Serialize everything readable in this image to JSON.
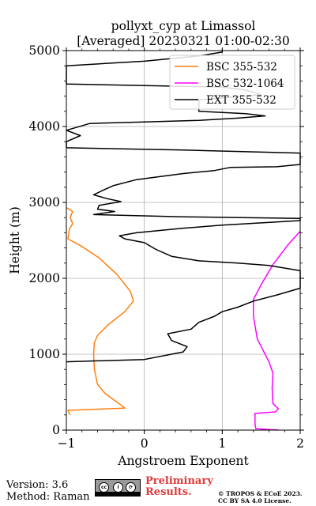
{
  "chart_data": {
    "type": "line",
    "title": "pollyxt_cyp at Limassol",
    "subtitle": "[Averaged] 20230321 01:00-02:30",
    "xlabel": "Angstroem Exponent",
    "ylabel": "Height (m)",
    "xlim": [
      -1,
      2
    ],
    "ylim": [
      0,
      5000
    ],
    "xticks": [
      "−1",
      "0",
      "1",
      "2"
    ],
    "yticks": [
      "0",
      "1000",
      "2000",
      "3000",
      "4000",
      "5000"
    ],
    "grid": true,
    "legend_position": "top-right",
    "series": [
      {
        "name": "BSC 355-532",
        "color": "#ff7f0e",
        "points": [
          [
            -0.95,
            200
          ],
          [
            -0.98,
            260
          ],
          [
            -0.25,
            290
          ],
          [
            -0.3,
            330
          ],
          [
            -0.5,
            480
          ],
          [
            -0.6,
            600
          ],
          [
            -0.64,
            800
          ],
          [
            -0.65,
            1000
          ],
          [
            -0.64,
            1150
          ],
          [
            -0.6,
            1250
          ],
          [
            -0.45,
            1400
          ],
          [
            -0.25,
            1560
          ],
          [
            -0.14,
            1700
          ],
          [
            -0.18,
            1830
          ],
          [
            -0.35,
            2050
          ],
          [
            -0.58,
            2270
          ],
          [
            -0.8,
            2420
          ],
          [
            -0.98,
            2520
          ],
          [
            -0.96,
            2650
          ],
          [
            -0.92,
            2720
          ],
          [
            -0.95,
            2800
          ],
          [
            -0.92,
            2880
          ],
          [
            -1.0,
            2930
          ]
        ]
      },
      {
        "name": "BSC 532-1064",
        "color": "#ff00ff",
        "points": [
          [
            1.72,
            0
          ],
          [
            1.43,
            20
          ],
          [
            1.42,
            80
          ],
          [
            1.42,
            220
          ],
          [
            1.68,
            240
          ],
          [
            1.72,
            280
          ],
          [
            1.65,
            350
          ],
          [
            1.64,
            550
          ],
          [
            1.65,
            750
          ],
          [
            1.6,
            900
          ],
          [
            1.45,
            1200
          ],
          [
            1.4,
            1500
          ],
          [
            1.4,
            1720
          ],
          [
            1.5,
            1920
          ],
          [
            1.65,
            2180
          ],
          [
            1.85,
            2450
          ],
          [
            2.0,
            2620
          ]
        ]
      },
      {
        "name": "EXT 355-532",
        "color": "#000000",
        "points": [
          [
            -1.0,
            900
          ],
          [
            0.0,
            930
          ],
          [
            0.5,
            1030
          ],
          [
            0.55,
            1100
          ],
          [
            0.35,
            1180
          ],
          [
            0.3,
            1270
          ],
          [
            0.6,
            1330
          ],
          [
            0.7,
            1420
          ],
          [
            0.9,
            1500
          ],
          [
            1.0,
            1560
          ],
          [
            1.2,
            1620
          ],
          [
            1.4,
            1700
          ],
          [
            1.7,
            1780
          ],
          [
            2.0,
            1870
          ],
          [
            2.0,
            2100
          ],
          [
            1.6,
            2170
          ],
          [
            1.2,
            2200
          ],
          [
            0.7,
            2230
          ],
          [
            0.35,
            2290
          ],
          [
            0.15,
            2380
          ],
          [
            0.0,
            2470
          ],
          [
            -0.25,
            2520
          ],
          [
            -0.32,
            2560
          ],
          [
            -0.1,
            2600
          ],
          [
            0.5,
            2660
          ],
          [
            1.0,
            2700
          ],
          [
            1.5,
            2730
          ],
          [
            2.0,
            2760
          ],
          [
            2.0,
            2790
          ],
          [
            0.5,
            2810
          ],
          [
            -0.65,
            2840
          ],
          [
            -0.38,
            2880
          ],
          [
            -0.6,
            2910
          ],
          [
            -0.58,
            2960
          ],
          [
            -0.3,
            3010
          ],
          [
            -0.48,
            3050
          ],
          [
            -0.65,
            3100
          ],
          [
            -0.55,
            3150
          ],
          [
            -0.4,
            3220
          ],
          [
            -0.1,
            3300
          ],
          [
            0.5,
            3380
          ],
          [
            0.9,
            3420
          ],
          [
            1.1,
            3460
          ],
          [
            1.7,
            3470
          ],
          [
            2.0,
            3500
          ],
          [
            2.0,
            3650
          ],
          [
            0.5,
            3690
          ],
          [
            -1.0,
            3720
          ],
          [
            -1.0,
            3800
          ],
          [
            -0.82,
            3880
          ],
          [
            -1.0,
            3950
          ],
          [
            -0.7,
            4040
          ],
          [
            0.0,
            4060
          ],
          [
            0.7,
            4080
          ],
          [
            1.2,
            4110
          ],
          [
            1.55,
            4140
          ],
          [
            1.3,
            4170
          ],
          [
            0.7,
            4200
          ],
          [
            0.7,
            4350
          ],
          [
            1.5,
            4420
          ],
          [
            1.3,
            4480
          ],
          [
            1.0,
            4520
          ],
          [
            0.0,
            4540
          ],
          [
            -1.0,
            4560
          ],
          [
            -1.0,
            4800
          ],
          [
            0.0,
            4860
          ],
          [
            0.7,
            4930
          ],
          [
            1.0,
            4980
          ],
          [
            1.0,
            5000
          ]
        ]
      }
    ]
  },
  "footer": {
    "version": "Version: 3.6",
    "method": "Method: Raman",
    "prelim_line1": "Preliminary",
    "prelim_line2": "Results.",
    "copyright_line1": "© TROPOS & ECoE 2023.",
    "copyright_line2": "CC BY SA 4.0 License."
  }
}
